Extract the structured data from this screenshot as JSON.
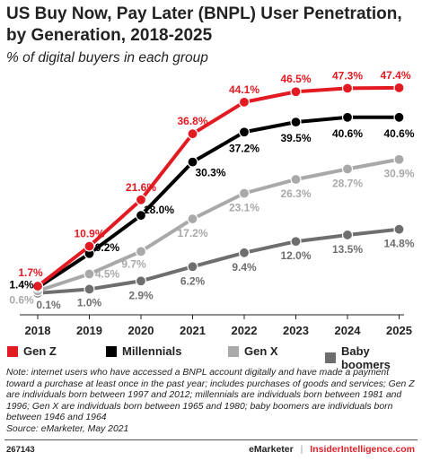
{
  "header": {
    "title": "US Buy Now, Pay Later (BNPL) User Penetration, by Generation, 2018-2025",
    "subtitle": "% of digital buyers in each group"
  },
  "chart_data": {
    "type": "line",
    "title": "US Buy Now, Pay Later (BNPL) User Penetration, by Generation, 2018-2025",
    "subtitle": "% of digital buyers in each group",
    "x": [
      "2018",
      "2019",
      "2020",
      "2021",
      "2022",
      "2023",
      "2024",
      "2025"
    ],
    "ylim": [
      0,
      50
    ],
    "grid": false,
    "legend_position": "bottom",
    "series": [
      {
        "name": "Gen Z",
        "color": "#e21a22",
        "values": [
          1.7,
          10.9,
          21.6,
          36.8,
          44.1,
          46.5,
          47.3,
          47.4
        ],
        "labels": [
          "1.7%",
          "10.9%",
          "21.6%",
          "36.8%",
          "44.1%",
          "46.5%",
          "47.3%",
          "47.4%"
        ]
      },
      {
        "name": "Millennials",
        "color": "#000000",
        "values": [
          1.4,
          9.2,
          18.0,
          30.3,
          37.2,
          39.5,
          40.6,
          40.6
        ],
        "labels": [
          "1.4%",
          "9.2%",
          "18.0%",
          "30.3%",
          "37.2%",
          "39.5%",
          "40.6%",
          "40.6%"
        ]
      },
      {
        "name": "Gen X",
        "color": "#a9a9a9",
        "values": [
          0.6,
          4.5,
          9.7,
          17.2,
          23.1,
          26.3,
          28.7,
          30.9
        ],
        "labels": [
          "0.6%",
          "4.5%",
          "9.7%",
          "17.2%",
          "23.1%",
          "26.3%",
          "28.7%",
          "30.9%"
        ]
      },
      {
        "name": "Baby boomers",
        "color": "#6e6e6e",
        "values": [
          0.1,
          1.0,
          2.9,
          6.2,
          9.4,
          12.0,
          13.5,
          14.8
        ],
        "labels": [
          "0.1%",
          "1.0%",
          "2.9%",
          "6.2%",
          "9.4%",
          "12.0%",
          "13.5%",
          "14.8%"
        ]
      }
    ]
  },
  "note": "Note: internet users who have accessed a BNPL account digitally and have made a payment toward a purchase at least once in the past year; includes purchases of goods and services; Gen Z are individuals born between 1997 and 2012; millennials are individuals born between 1981 and 1996; Gen X are individuals born between 1965 and 1980; baby boomers are individuals born between 1946 and 1964",
  "source": "Source: eMarketer, May 2021",
  "footer": {
    "chart_id": "267143",
    "brand_primary": "eMarketer",
    "separator": "|",
    "brand_secondary": "InsiderIntelligence.com"
  }
}
